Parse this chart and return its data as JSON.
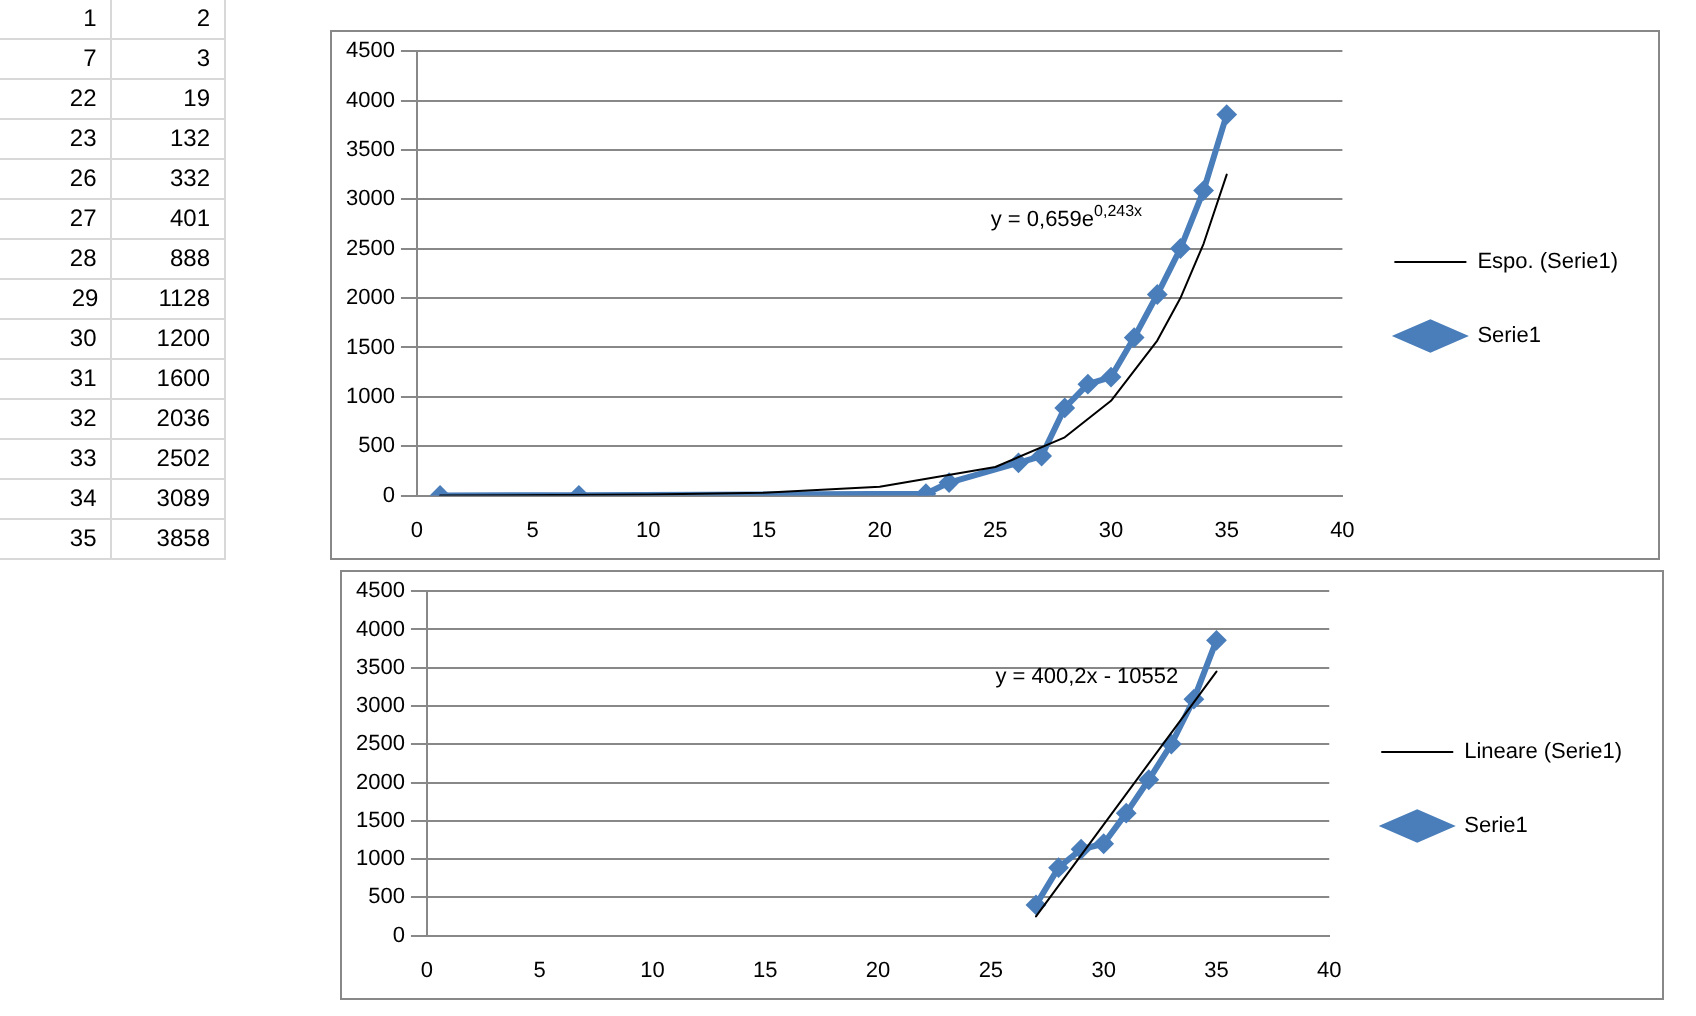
{
  "chart_data": [
    {
      "type": "other",
      "annotations": [
        "1 2",
        "7 3",
        "22 19",
        "23 132",
        "26 332",
        "27 401",
        "28 888",
        "29 1128",
        "30 1200",
        "31 1600",
        "32 2036",
        "33 2502",
        "34 3089",
        "35 3858"
      ]
    },
    {
      "type": "scatter",
      "xlim": [
        0,
        40
      ],
      "xticks": [
        0,
        5,
        10,
        15,
        20,
        25,
        30,
        35,
        40
      ],
      "ylim": [
        0,
        4500
      ],
      "yticks": [
        0,
        500,
        1000,
        1500,
        2000,
        2500,
        3000,
        3500,
        4000,
        4500
      ],
      "grid": "y",
      "legend": "right",
      "annotations": [
        "y = 0,659e$^{0,243x}$"
      ],
      "series": [
        {
          "name": "Serie1",
          "type": "line",
          "color": "#4a7ebb",
          "marker": "diamond",
          "line_style": "solid",
          "x": [
            1,
            7,
            22,
            23,
            26,
            27,
            28,
            29,
            30,
            31,
            32,
            33,
            34,
            35
          ],
          "values": [
            2,
            3,
            19,
            132,
            332,
            401,
            888,
            1128,
            1200,
            1600,
            2036,
            2502,
            3089,
            3858
          ]
        },
        {
          "name": "Espo. (Serie1)",
          "type": "line",
          "color": "#000000",
          "marker": "none",
          "line_style": "solid",
          "x": [
            1,
            10,
            15,
            20,
            25,
            28,
            30,
            32,
            33,
            34,
            35
          ],
          "values": [
            0,
            10,
            30,
            90,
            290,
            590,
            960,
            1570,
            2000,
            2550,
            3250
          ]
        }
      ]
    },
    {
      "type": "scatter",
      "xlim": [
        0,
        40
      ],
      "xticks": [
        0,
        5,
        10,
        15,
        20,
        25,
        30,
        35,
        40
      ],
      "ylim": [
        0,
        4500
      ],
      "yticks": [
        0,
        500,
        1000,
        1500,
        2000,
        2500,
        3000,
        3500,
        4000,
        4500
      ],
      "grid": "y",
      "legend": "right",
      "annotations": [
        "y = 400,2x - 10552"
      ],
      "series": [
        {
          "name": "Serie1",
          "type": "line",
          "color": "#4a7ebb",
          "marker": "diamond",
          "line_style": "solid",
          "x": [
            27,
            28,
            29,
            30,
            31,
            32,
            33,
            34,
            35
          ],
          "values": [
            401,
            888,
            1128,
            1200,
            1600,
            2036,
            2502,
            3089,
            3858
          ]
        },
        {
          "name": "Lineare (Serie1)",
          "type": "line",
          "color": "#000000",
          "marker": "none",
          "line_style": "solid",
          "x": [
            27,
            35
          ],
          "values": [
            250,
            3450
          ]
        }
      ]
    }
  ]
}
